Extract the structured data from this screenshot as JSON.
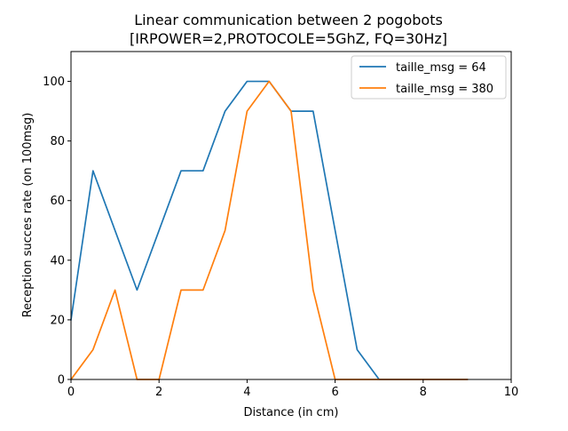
{
  "chart_data": {
    "type": "line",
    "title": "Linear communication between 2 pogobots",
    "subtitle": "[IRPOWER=2,PROTOCOLE=5GhZ, FQ=30Hz]",
    "xlabel": "Distance (in cm)",
    "ylabel": "Reception succes rate (on 100msg)",
    "xlim": [
      0,
      10
    ],
    "ylim": [
      0,
      110
    ],
    "xticks": [
      0,
      2,
      4,
      6,
      8,
      10
    ],
    "yticks": [
      0,
      20,
      40,
      60,
      80,
      100
    ],
    "xtick_labels": [
      "0",
      "2",
      "4",
      "6",
      "8",
      "10"
    ],
    "ytick_labels": [
      "0",
      "20",
      "40",
      "60",
      "80",
      "100"
    ],
    "grid": false,
    "legend_position": "top-right",
    "series": [
      {
        "name": "taille_msg = 64",
        "color": "#1f77b4",
        "x": [
          0,
          0.5,
          1,
          1.5,
          2,
          2.5,
          3,
          3.5,
          4,
          4.5,
          5,
          5.5,
          6,
          6.5,
          7,
          7.5,
          8,
          8.5,
          9
        ],
        "values": [
          20,
          70,
          50,
          30,
          50,
          70,
          70,
          90,
          100,
          100,
          90,
          90,
          50,
          10,
          0,
          0,
          0,
          0,
          0
        ]
      },
      {
        "name": "taille_msg = 380",
        "color": "#ff7f0e",
        "x": [
          0,
          0.5,
          1,
          1.5,
          2,
          2.5,
          3,
          3.5,
          4,
          4.5,
          5,
          5.5,
          6,
          6.5,
          7,
          7.5,
          8,
          8.5,
          9
        ],
        "values": [
          0,
          10,
          30,
          0,
          0,
          30,
          30,
          50,
          90,
          100,
          90,
          30,
          0,
          0,
          0,
          0,
          0,
          0,
          0
        ]
      }
    ]
  }
}
